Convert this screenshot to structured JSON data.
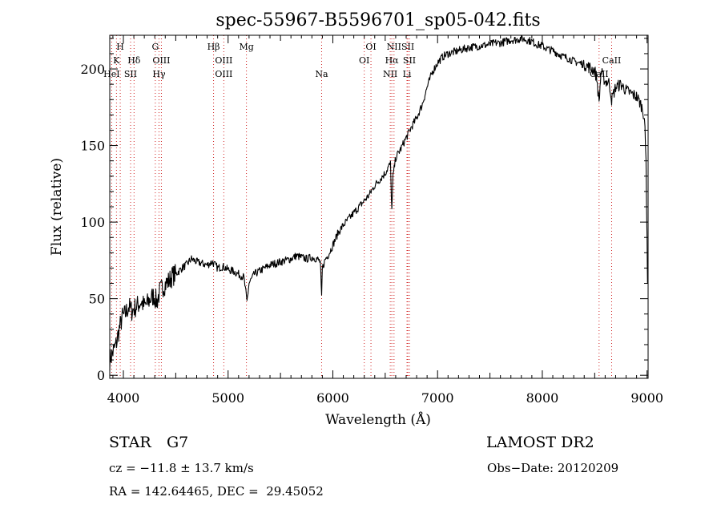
{
  "chart_data": {
    "type": "line",
    "title": "spec-55967-B5596701_sp05-042.fits",
    "xlabel": "Wavelength (Å)",
    "ylabel": "Flux (relative)",
    "xlim": [
      3870,
      9010
    ],
    "ylim": [
      -2,
      222
    ],
    "x_ticks": [
      4000,
      5000,
      6000,
      7000,
      8000,
      9000
    ],
    "y_ticks": [
      0,
      50,
      100,
      150,
      200
    ],
    "grid": false,
    "series_color": "#000000",
    "line_marker_color": "#d02020",
    "x": [
      3870,
      3900,
      3930,
      3960,
      3990,
      4020,
      4050,
      4080,
      4110,
      4140,
      4170,
      4200,
      4230,
      4260,
      4290,
      4320,
      4350,
      4380,
      4410,
      4440,
      4470,
      4500,
      4530,
      4560,
      4600,
      4650,
      4700,
      4750,
      4800,
      4850,
      4900,
      4950,
      5000,
      5050,
      5100,
      5150,
      5180,
      5200,
      5250,
      5300,
      5350,
      5400,
      5450,
      5500,
      5550,
      5600,
      5650,
      5700,
      5750,
      5800,
      5850,
      5880,
      5893,
      5900,
      5930,
      5960,
      6000,
      6050,
      6100,
      6150,
      6200,
      6250,
      6300,
      6350,
      6400,
      6450,
      6500,
      6530,
      6550,
      6563,
      6575,
      6600,
      6650,
      6700,
      6750,
      6800,
      6850,
      6900,
      6950,
      7000,
      7050,
      7100,
      7200,
      7300,
      7400,
      7500,
      7550,
      7600,
      7650,
      7700,
      7750,
      7800,
      7850,
      7900,
      7950,
      8000,
      8050,
      8100,
      8150,
      8200,
      8250,
      8300,
      8350,
      8400,
      8450,
      8500,
      8520,
      8542,
      8560,
      8600,
      8640,
      8662,
      8700,
      8750,
      8800,
      8850,
      8900,
      8940,
      8960,
      8975,
      8990,
      9000,
      9005
    ],
    "values": [
      10,
      15,
      20,
      30,
      38,
      40,
      45,
      42,
      44,
      46,
      48,
      45,
      47,
      50,
      52,
      48,
      55,
      58,
      60,
      62,
      65,
      66,
      68,
      70,
      72,
      76,
      74,
      73,
      72,
      74,
      70,
      71,
      69,
      68,
      66,
      64,
      48,
      60,
      66,
      68,
      70,
      72,
      73,
      74,
      75,
      76,
      78,
      77,
      76,
      77,
      76,
      74,
      50,
      70,
      76,
      79,
      85,
      93,
      98,
      102,
      106,
      110,
      114,
      118,
      124,
      128,
      132,
      136,
      138,
      108,
      130,
      142,
      148,
      155,
      162,
      168,
      176,
      188,
      198,
      204,
      208,
      210,
      212,
      214,
      215,
      216,
      217,
      217,
      218,
      219,
      219,
      220,
      219,
      218,
      216,
      215,
      213,
      212,
      210,
      208,
      207,
      205,
      204,
      203,
      201,
      199,
      194,
      178,
      198,
      192,
      191,
      180,
      188,
      190,
      186,
      184,
      182,
      177,
      173,
      168,
      140,
      90,
      60
    ],
    "spectral_lines": [
      {
        "label": "H",
        "wavelength": 3970,
        "row": 1
      },
      {
        "label": "K",
        "wavelength": 3934,
        "row": 2
      },
      {
        "label": "HeI",
        "wavelength": 3888,
        "row": 3
      },
      {
        "label": "Hδ",
        "wavelength": 4102,
        "row": 2
      },
      {
        "label": "SII",
        "wavelength": 4069,
        "row": 3
      },
      {
        "label": "G",
        "wavelength": 4305,
        "row": 1
      },
      {
        "label": "OIII",
        "wavelength": 4363,
        "row": 2
      },
      {
        "label": "Hγ",
        "wavelength": 4340,
        "row": 3
      },
      {
        "label": "Hβ",
        "wavelength": 4861,
        "row": 1
      },
      {
        "label": "OIII",
        "wavelength": 4959,
        "row": 2
      },
      {
        "label": "OIII",
        "wavelength": 4959,
        "row": 3
      },
      {
        "label": "Mg",
        "wavelength": 5175,
        "row": 1
      },
      {
        "label": "Na",
        "wavelength": 5893,
        "row": 3
      },
      {
        "label": "OI",
        "wavelength": 6364,
        "row": 1
      },
      {
        "label": "OI",
        "wavelength": 6300,
        "row": 2
      },
      {
        "label": "NII",
        "wavelength": 6584,
        "row": 1
      },
      {
        "label": "SII",
        "wavelength": 6716,
        "row": 1
      },
      {
        "label": "Hα",
        "wavelength": 6563,
        "row": 2
      },
      {
        "label": "SII",
        "wavelength": 6731,
        "row": 2
      },
      {
        "label": "NII",
        "wavelength": 6548,
        "row": 3
      },
      {
        "label": "Li",
        "wavelength": 6708,
        "row": 3
      },
      {
        "label": "CaII",
        "wavelength": 8662,
        "row": 2
      },
      {
        "label": "CaII",
        "wavelength": 8542,
        "row": 3
      }
    ]
  },
  "info": {
    "object_class": "STAR",
    "subclass": "G7",
    "survey": "LAMOST DR2",
    "cz": "cz = −11.8 ± 13.7 km/s",
    "obs_date": "Obs−Date: 20120209",
    "coords": "RA = 142.64465, DEC =  29.45052"
  }
}
